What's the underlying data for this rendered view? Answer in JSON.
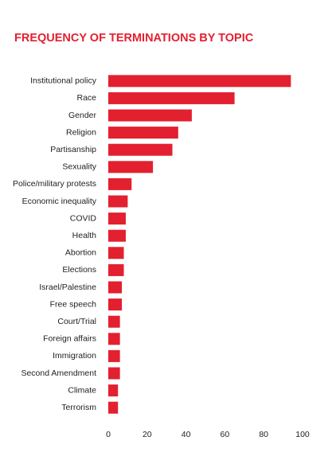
{
  "chart_data": {
    "type": "bar",
    "orientation": "horizontal",
    "title": "FREQUENCY OF TERMINATIONS BY TOPIC",
    "categories": [
      "Institutional policy",
      "Race",
      "Gender",
      "Religion",
      "Partisanship",
      "Sexuality",
      "Police/military protests",
      "Economic inequality",
      "COVID",
      "Health",
      "Abortion",
      "Elections",
      "Israel/Palestine",
      "Free speech",
      "Court/Trial",
      "Foreign affairs",
      "Immigration",
      "Second Amendment",
      "Climate",
      "Terrorism"
    ],
    "values": [
      94,
      65,
      43,
      36,
      33,
      23,
      12,
      10,
      9,
      9,
      8,
      8,
      7,
      7,
      6,
      6,
      6,
      6,
      5,
      5
    ],
    "color": "#e3202f",
    "xlim": [
      0,
      100
    ],
    "xticks": [
      0,
      20,
      40,
      60,
      80,
      100
    ],
    "grid": false
  }
}
